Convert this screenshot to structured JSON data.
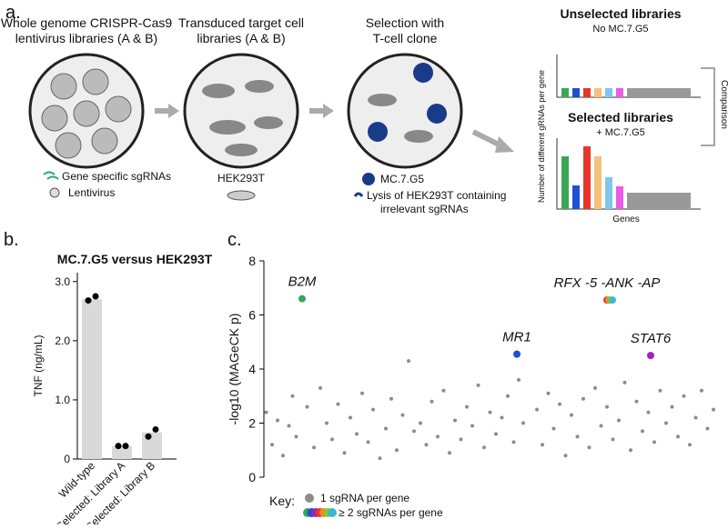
{
  "panel_a": {
    "label": "a.",
    "steps": [
      {
        "title_lines": [
          "Whole genome CRISPR-Cas9",
          "lentivirus libraries (A & B)"
        ],
        "legend": [
          "Gene specific sgRNAs",
          "Lentivirus"
        ]
      },
      {
        "title_lines": [
          "Transduced target cell",
          "libraries (A & B)"
        ],
        "legend": [
          "HEK293T"
        ]
      },
      {
        "title_lines": [
          "Selection with",
          "T-cell clone"
        ],
        "legend": [
          "MC.7.G5",
          "Lysis of HEK293T containing",
          "irrelevant sgRNAs"
        ]
      }
    ],
    "schematic": {
      "unselected_title": "Unselected libraries",
      "unselected_subtitle": "No MC.7.G5",
      "selected_title": "Selected libraries",
      "selected_subtitle": "+ MC.7.G5",
      "ylabel": "Number of different gRNAs per gene",
      "xlabel": "Genes",
      "comparison": "Comparison"
    }
  },
  "chart_data": [
    {
      "type": "bar",
      "panel_label": "b.",
      "title": "MC.7.G5 versus HEK293T",
      "categories": [
        "Wild-type",
        "Selected: Library A",
        "Selected: Library B"
      ],
      "values": [
        2.7,
        0.22,
        0.45
      ],
      "points": [
        [
          2.68,
          2.75
        ],
        [
          0.22,
          0.22
        ],
        [
          0.38,
          0.5
        ]
      ],
      "color": "#d9d9d9",
      "point_color": "#000000",
      "ylabel": "TNF (ng/mL)",
      "ylim": [
        0,
        3.15
      ],
      "yticks": [
        {
          "value": 0,
          "label": "0"
        },
        {
          "value": 1,
          "label": "1.0"
        },
        {
          "value": 2,
          "label": "2.0"
        },
        {
          "value": 3,
          "label": "3.0"
        }
      ]
    },
    {
      "type": "scatter",
      "panel_label": "c.",
      "ylabel": "-log10 (MAGeCK p)",
      "legend_title": "Key:",
      "xlim": [
        0,
        1000
      ],
      "ylim": [
        0,
        8
      ],
      "yticks": [
        0,
        2,
        4,
        6,
        8
      ],
      "series": [
        {
          "name": "1 sgRNA per gene",
          "color": "#8c8c8c",
          "x": [
            5,
            18,
            30,
            42,
            55,
            63,
            71,
            95,
            110,
            124,
            138,
            150,
            163,
            177,
            190,
            204,
            216,
            229,
            240,
            255,
            268,
            280,
            292,
            305,
            318,
            330,
            344,
            357,
            369,
            382,
            395,
            408,
            420,
            433,
            446,
            458,
            471,
            484,
            497,
            510,
            523,
            536,
            549,
            560,
            570,
            600,
            612,
            625,
            637,
            650,
            663,
            676,
            689,
            702,
            715,
            728,
            741,
            754,
            767,
            780,
            793,
            806,
            819,
            832,
            845,
            858,
            871,
            884,
            897,
            910,
            923,
            936,
            949,
            962,
            975,
            988
          ],
          "values": [
            2.4,
            1.2,
            2.1,
            0.8,
            1.9,
            3.0,
            1.5,
            2.6,
            1.1,
            3.3,
            2.0,
            1.4,
            2.7,
            0.9,
            2.2,
            1.6,
            3.1,
            1.3,
            2.5,
            0.7,
            1.8,
            2.9,
            1.0,
            2.3,
            4.3,
            1.7,
            2.0,
            1.2,
            2.8,
            1.5,
            3.2,
            0.9,
            2.1,
            1.4,
            2.6,
            1.9,
            3.4,
            1.1,
            2.4,
            1.6,
            2.2,
            3.0,
            1.3,
            3.6,
            2.0,
            2.5,
            1.2,
            3.1,
            1.8,
            2.7,
            0.8,
            2.3,
            1.5,
            2.9,
            1.1,
            3.3,
            1.9,
            2.6,
            1.4,
            2.1,
            3.5,
            1.0,
            2.8,
            1.7,
            2.4,
            1.3,
            3.2,
            2.0,
            2.6,
            1.5,
            3.0,
            1.2,
            2.2,
            3.2,
            1.8,
            2.5
          ]
        },
        {
          "name": "≥ 2 sgRNAs per gene",
          "colors": [
            "#3aa655",
            "#1f4fd6",
            "#a020c0",
            "#e8352b",
            "#f08a1c",
            "#8ac43f",
            "#3fb8c8"
          ],
          "x": [
            84,
            556,
            850,
            754,
            758,
            762,
            766
          ],
          "values": [
            6.6,
            4.55,
            4.5,
            6.55,
            6.55,
            6.55,
            6.55
          ],
          "labels": [
            "B2M",
            "MR1",
            "STAT6",
            "RFX -5 -ANK -AP",
            null,
            null,
            null
          ]
        }
      ]
    }
  ]
}
